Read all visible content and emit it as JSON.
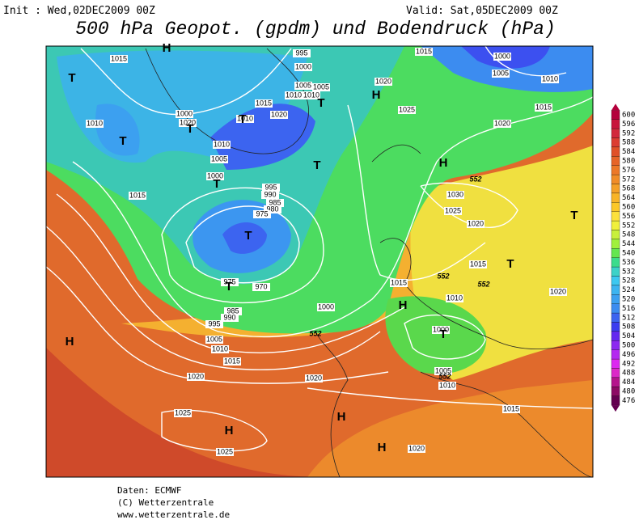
{
  "header": {
    "init": "Init : Wed,02DEC2009 00Z",
    "valid": "Valid: Sat,05DEC2009 00Z",
    "title": "500 hPa Geopot. (gpdm) und Bodendruck (hPa)"
  },
  "colorbar": {
    "values": [
      600,
      596,
      592,
      588,
      584,
      580,
      576,
      572,
      568,
      564,
      560,
      556,
      552,
      548,
      544,
      540,
      536,
      532,
      528,
      524,
      520,
      516,
      512,
      508,
      504,
      500,
      496,
      492,
      488,
      484,
      480,
      476
    ],
    "colors": [
      "#b4003c",
      "#c8143c",
      "#d2283c",
      "#dc3c32",
      "#e05028",
      "#e66428",
      "#ec7828",
      "#f08c28",
      "#f4a028",
      "#f8b428",
      "#fcc828",
      "#fce13c",
      "#f0f03c",
      "#c8f03c",
      "#a0f03c",
      "#64e650",
      "#3cdc8c",
      "#3cd2c8",
      "#3cc8f0",
      "#3cb4f0",
      "#3ca0f0",
      "#3c8cf0",
      "#3c64f0",
      "#3c3cf0",
      "#6428f0",
      "#8c28f0",
      "#b428f0",
      "#dc28f0",
      "#dc28c8",
      "#b4148c",
      "#8c0a64",
      "#640050"
    ]
  },
  "map": {
    "isobar_labels": [
      "1015",
      "995",
      "1000",
      "1005",
      "1005",
      "1010",
      "1010",
      "1015",
      "1020",
      "1020",
      "1025",
      "1015",
      "1000",
      "1005",
      "1010",
      "1015",
      "1020",
      "1010",
      "1000",
      "1020",
      "1010",
      "1010",
      "1005",
      "1000",
      "1015",
      "995",
      "990",
      "985",
      "980",
      "975",
      "970",
      "975",
      "985",
      "990",
      "995",
      "1005",
      "1010",
      "1015",
      "1020",
      "1000",
      "1015",
      "1010",
      "1000",
      "1005",
      "1010",
      "1015",
      "1020",
      "1020",
      "1025",
      "1025",
      "1030",
      "1025",
      "1020",
      "1015",
      "1020"
    ],
    "height_labels": [
      "552",
      "552",
      "552",
      "552",
      "552"
    ],
    "highs": [
      "H",
      "H",
      "H",
      "H",
      "H",
      "H",
      "H",
      "H"
    ],
    "lows": [
      "T",
      "T",
      "T",
      "T",
      "T",
      "T",
      "T",
      "T",
      "T",
      "T",
      "T",
      "T"
    ]
  },
  "footer": {
    "source": "Daten: ECMWF",
    "copyright": "(C) Wetterzentrale",
    "url": "www.wetterzentrale.de"
  }
}
